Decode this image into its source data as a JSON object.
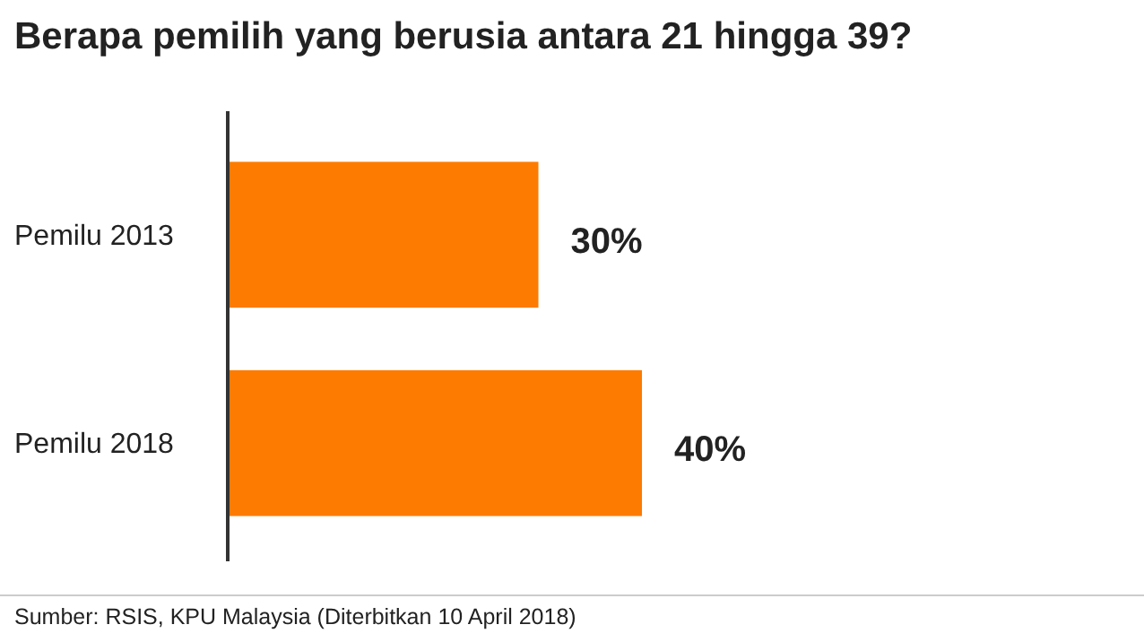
{
  "chart_data": {
    "type": "bar",
    "orientation": "horizontal",
    "title": "Berapa pemilih yang berusia antara 21 hingga 39?",
    "categories": [
      "Pemilu 2013",
      "Pemilu 2018"
    ],
    "values": [
      30,
      40
    ],
    "value_labels": [
      "30%",
      "40%"
    ],
    "color": "#fd7b00",
    "annotations": [
      "Sumber: RSIS, KPU Malaysia (Diterbitkan 10 April 2018)"
    ]
  }
}
